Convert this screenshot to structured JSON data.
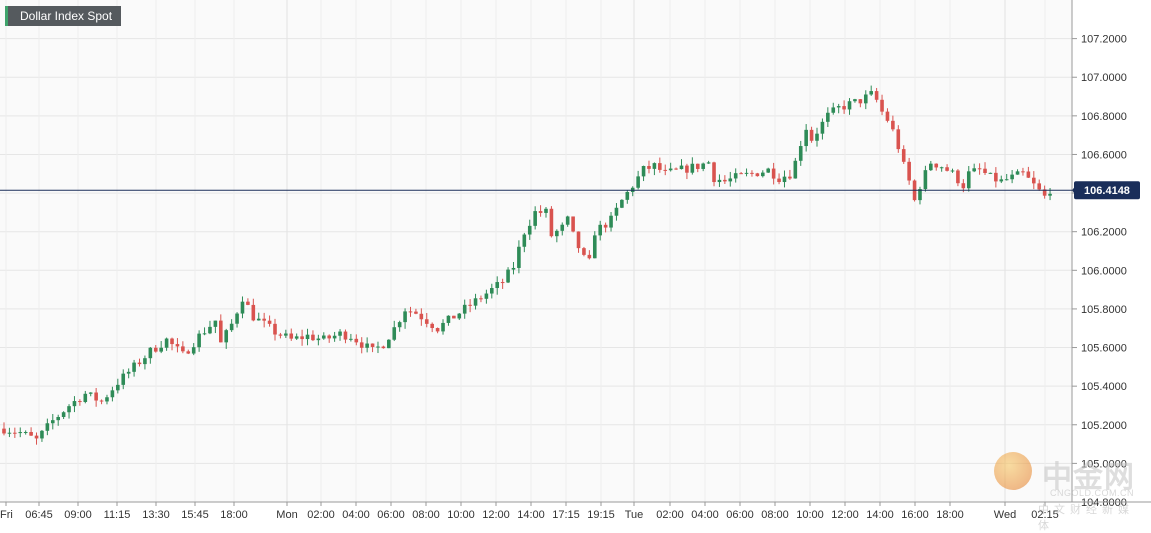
{
  "chart_data": {
    "type": "candlestick",
    "title": "Dollar Index Spot",
    "y_axis_position": "right",
    "ylim": [
      104.8,
      107.4
    ],
    "y_ticks": [
      104.8,
      105.0,
      105.2,
      105.4,
      105.6,
      105.8,
      106.0,
      106.2,
      106.4,
      106.6,
      106.8,
      107.0,
      107.2
    ],
    "y_tick_labels": [
      "104.8000",
      "105.0000",
      "105.2000",
      "105.4000",
      "105.6000",
      "105.8000",
      "106.0000",
      "106.2000",
      "106.4000",
      "106.6000",
      "106.8000",
      "107.0000",
      "107.2000"
    ],
    "current_price": 106.4148,
    "current_price_label": "106.4148",
    "x_tick_labels": [
      "Fri",
      "06:45",
      "09:00",
      "11:15",
      "13:30",
      "15:45",
      "18:00",
      "Mon",
      "02:00",
      "04:00",
      "06:00",
      "08:00",
      "10:00",
      "12:00",
      "14:00",
      "17:15",
      "19:15",
      "Tue",
      "02:00",
      "04:00",
      "06:00",
      "08:00",
      "10:00",
      "12:00",
      "14:00",
      "16:00",
      "18:00",
      "Wed",
      "02:15"
    ],
    "day_separators": [
      "Mon",
      "Tue",
      "Wed"
    ],
    "grid": true,
    "colors": {
      "up": "#2e8b57",
      "down": "#d9534f",
      "price_line": "#1a2e5a",
      "grid": "#e6e6e6"
    },
    "close_path": [
      [
        0,
        105.18
      ],
      [
        3,
        105.16
      ],
      [
        6,
        105.12
      ],
      [
        9,
        105.22
      ],
      [
        12,
        105.3
      ],
      [
        15,
        105.36
      ],
      [
        18,
        105.32
      ],
      [
        21,
        105.42
      ],
      [
        24,
        105.5
      ],
      [
        27,
        105.58
      ],
      [
        30,
        105.64
      ],
      [
        33,
        105.56
      ],
      [
        36,
        105.66
      ],
      [
        39,
        105.74
      ],
      [
        40,
        105.62
      ],
      [
        42,
        105.72
      ],
      [
        44,
        105.86
      ],
      [
        46,
        105.76
      ],
      [
        48,
        105.72
      ],
      [
        50,
        105.68
      ],
      [
        53,
        105.64
      ],
      [
        56,
        105.66
      ],
      [
        59,
        105.64
      ],
      [
        62,
        105.67
      ],
      [
        64,
        105.66
      ],
      [
        66,
        105.62
      ],
      [
        68,
        105.58
      ],
      [
        70,
        105.62
      ],
      [
        72,
        105.7
      ],
      [
        74,
        105.8
      ],
      [
        76,
        105.78
      ],
      [
        78,
        105.74
      ],
      [
        80,
        105.7
      ],
      [
        82,
        105.74
      ],
      [
        84,
        105.78
      ],
      [
        86,
        105.82
      ],
      [
        88,
        105.86
      ],
      [
        90,
        105.9
      ],
      [
        92,
        105.94
      ],
      [
        94,
        106.02
      ],
      [
        96,
        106.2
      ],
      [
        98,
        106.3
      ],
      [
        100,
        106.3
      ],
      [
        101,
        106.18
      ],
      [
        103,
        106.22
      ],
      [
        104,
        106.26
      ],
      [
        105,
        106.18
      ],
      [
        107,
        106.06
      ],
      [
        108,
        106.04
      ],
      [
        109,
        106.2
      ],
      [
        110,
        106.22
      ],
      [
        112,
        106.26
      ],
      [
        114,
        106.36
      ],
      [
        116,
        106.44
      ],
      [
        118,
        106.52
      ],
      [
        120,
        106.54
      ],
      [
        122,
        106.5
      ],
      [
        125,
        106.52
      ],
      [
        128,
        106.54
      ],
      [
        130,
        106.56
      ],
      [
        131,
        106.48
      ],
      [
        133,
        106.46
      ],
      [
        135,
        106.48
      ],
      [
        138,
        106.5
      ],
      [
        141,
        106.52
      ],
      [
        143,
        106.48
      ],
      [
        145,
        106.5
      ],
      [
        146,
        106.56
      ],
      [
        147,
        106.66
      ],
      [
        148,
        106.74
      ],
      [
        149,
        106.68
      ],
      [
        150,
        106.72
      ],
      [
        152,
        106.8
      ],
      [
        154,
        106.84
      ],
      [
        156,
        106.86
      ],
      [
        158,
        106.88
      ],
      [
        160,
        106.91
      ],
      [
        161,
        106.88
      ],
      [
        162,
        106.82
      ],
      [
        163,
        106.78
      ],
      [
        164,
        106.72
      ],
      [
        165,
        106.64
      ],
      [
        166,
        106.54
      ],
      [
        167,
        106.46
      ],
      [
        168,
        106.36
      ],
      [
        169,
        106.44
      ],
      [
        170,
        106.5
      ],
      [
        171,
        106.56
      ],
      [
        173,
        106.54
      ],
      [
        175,
        106.5
      ],
      [
        177,
        106.44
      ],
      [
        178,
        106.5
      ],
      [
        180,
        106.52
      ],
      [
        182,
        106.48
      ],
      [
        184,
        106.46
      ],
      [
        186,
        106.48
      ],
      [
        188,
        106.5
      ],
      [
        190,
        106.44
      ],
      [
        192,
        106.38
      ],
      [
        193,
        106.42
      ]
    ]
  },
  "watermark": {
    "brand_cn": "中金网",
    "brand_en": "CNGOLD.COM.CN",
    "tagline": "中文财经新媒体"
  }
}
